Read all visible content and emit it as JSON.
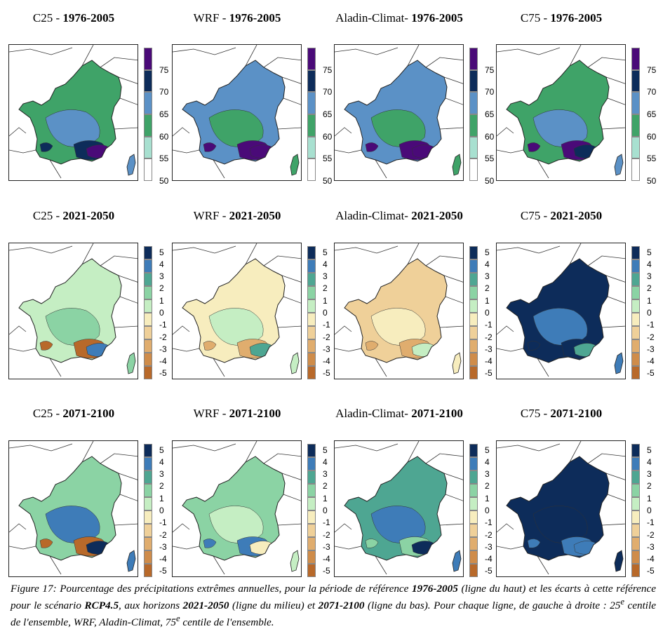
{
  "columns": [
    {
      "model": "C25 - ",
      "sep": ""
    },
    {
      "model": "WRF - ",
      "sep": ""
    },
    {
      "model": "Aladin-Climat- ",
      "sep": ""
    },
    {
      "model": "C75 - ",
      "sep": ""
    }
  ],
  "rows": [
    {
      "period": "1976-2005",
      "scale": "abs",
      "palette": [
        "#ffffff",
        "#a8e0d0",
        "#3fa368",
        "#5b91c6",
        "#0d2c5a",
        "#4a0a78"
      ],
      "ticks": [
        "50",
        "55",
        "60",
        "65",
        "70",
        "75"
      ],
      "fills": [
        {
          "base": "#3fa368",
          "blob": "#5b91c6",
          "dark": "#0d2c5a",
          "accent": "#4a0a78"
        },
        {
          "base": "#5b91c6",
          "blob": "#3fa368",
          "dark": "#4a0a78",
          "accent": "#4a0a78"
        },
        {
          "base": "#5b91c6",
          "blob": "#3fa368",
          "dark": "#4a0a78",
          "accent": "#4a0a78"
        },
        {
          "base": "#3fa368",
          "blob": "#5b91c6",
          "dark": "#4a0a78",
          "accent": "#0d2c5a"
        }
      ]
    },
    {
      "period": "2021-2050",
      "scale": "anom",
      "palette": [
        "#b8692a",
        "#cf8c4a",
        "#e0ad6e",
        "#efd099",
        "#f7edbe",
        "#c5eec3",
        "#8bd3a4",
        "#4ea692",
        "#3e7cb8",
        "#0d2c5a"
      ],
      "ticks": [
        "-5",
        "-4",
        "-3",
        "-2",
        "-1",
        "0",
        "1",
        "2",
        "3",
        "4",
        "5"
      ],
      "fills": [
        {
          "base": "#c5eec3",
          "blob": "#8bd3a4",
          "dark": "#b8692a",
          "accent": "#3e7cb8"
        },
        {
          "base": "#f7edbe",
          "blob": "#c5eec3",
          "dark": "#e0ad6e",
          "accent": "#4ea692"
        },
        {
          "base": "#efd099",
          "blob": "#f7edbe",
          "dark": "#e0ad6e",
          "accent": "#c5eec3"
        },
        {
          "base": "#0d2c5a",
          "blob": "#3e7cb8",
          "dark": "#0d2c5a",
          "accent": "#4ea692"
        }
      ]
    },
    {
      "period": "2071-2100",
      "scale": "anom",
      "palette": [
        "#b8692a",
        "#cf8c4a",
        "#e0ad6e",
        "#efd099",
        "#f7edbe",
        "#c5eec3",
        "#8bd3a4",
        "#4ea692",
        "#3e7cb8",
        "#0d2c5a"
      ],
      "ticks": [
        "-5",
        "-4",
        "-3",
        "-2",
        "-1",
        "0",
        "1",
        "2",
        "3",
        "4",
        "5"
      ],
      "fills": [
        {
          "base": "#8bd3a4",
          "blob": "#3e7cb8",
          "dark": "#b8692a",
          "accent": "#0d2c5a"
        },
        {
          "base": "#8bd3a4",
          "blob": "#c5eec3",
          "dark": "#3e7cb8",
          "accent": "#f7edbe"
        },
        {
          "base": "#4ea692",
          "blob": "#3e7cb8",
          "dark": "#8bd3a4",
          "accent": "#0d2c5a"
        },
        {
          "base": "#0d2c5a",
          "blob": "#0d2c5a",
          "dark": "#3e7cb8",
          "accent": "#3e7cb8"
        }
      ]
    }
  ],
  "caption": {
    "p1": "Figure 17: Pourcentage des précipitations extrêmes annuelles, pour la période de référence ",
    "b1": "1976-2005",
    "p2": " (ligne du haut) et les écarts à cette référence pour le scénario ",
    "b2": "RCP4.5",
    "p3": ", aux horizons ",
    "b3": "2021-2050",
    "p4": " (ligne du milieu) et ",
    "b4": "2071-2100",
    "p5": " (ligne du bas). Pour chaque ligne, de gauche à droite : 25",
    "sup1": "e",
    "p6": " centile de l'ensemble, WRF, Aladin-Climat, 75",
    "sup2": "e",
    "p7": " centile de l'ensemble."
  }
}
